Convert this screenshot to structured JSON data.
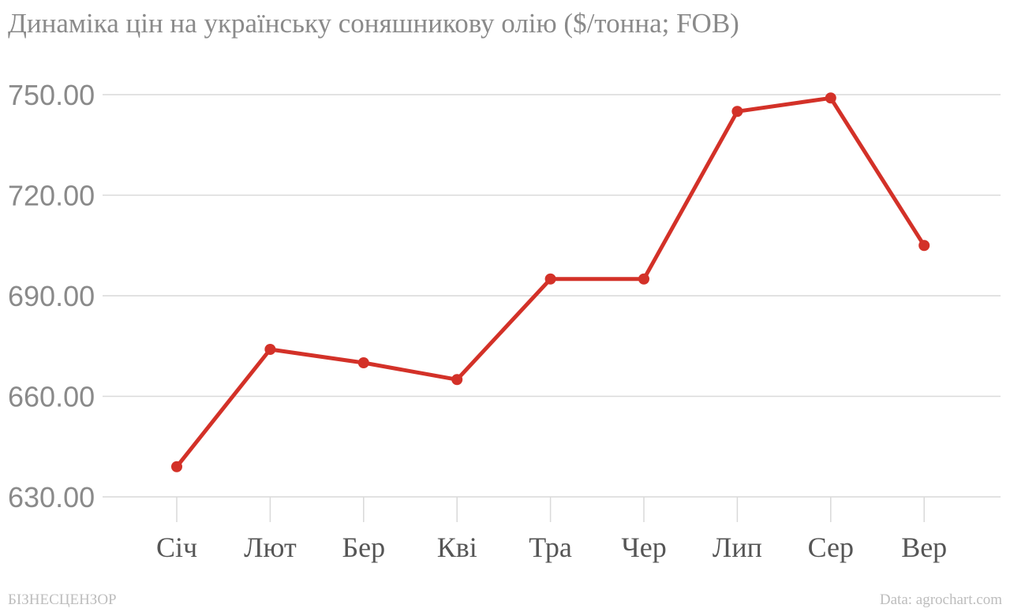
{
  "chart_data": {
    "type": "line",
    "title": "Динаміка цін на українську соняшникову олію ($/тонна; FOB)",
    "categories": [
      "Січ",
      "Лют",
      "Бер",
      "Кві",
      "Тра",
      "Чер",
      "Лип",
      "Сер",
      "Вер"
    ],
    "series": [
      {
        "values": [
          639,
          674,
          670,
          665,
          695,
          695,
          745,
          749,
          705
        ]
      }
    ],
    "yticks": [
      "630.00",
      "660.00",
      "690.00",
      "720.00",
      "750.00"
    ],
    "ylim": [
      630,
      750
    ],
    "grid": true,
    "legend": "none",
    "xlabel": "",
    "ylabel": "",
    "line_color": "#d33128"
  },
  "footer": {
    "brand": "БІЗНЕСЦЕНЗОР",
    "source": "Data: agrochart.com"
  }
}
